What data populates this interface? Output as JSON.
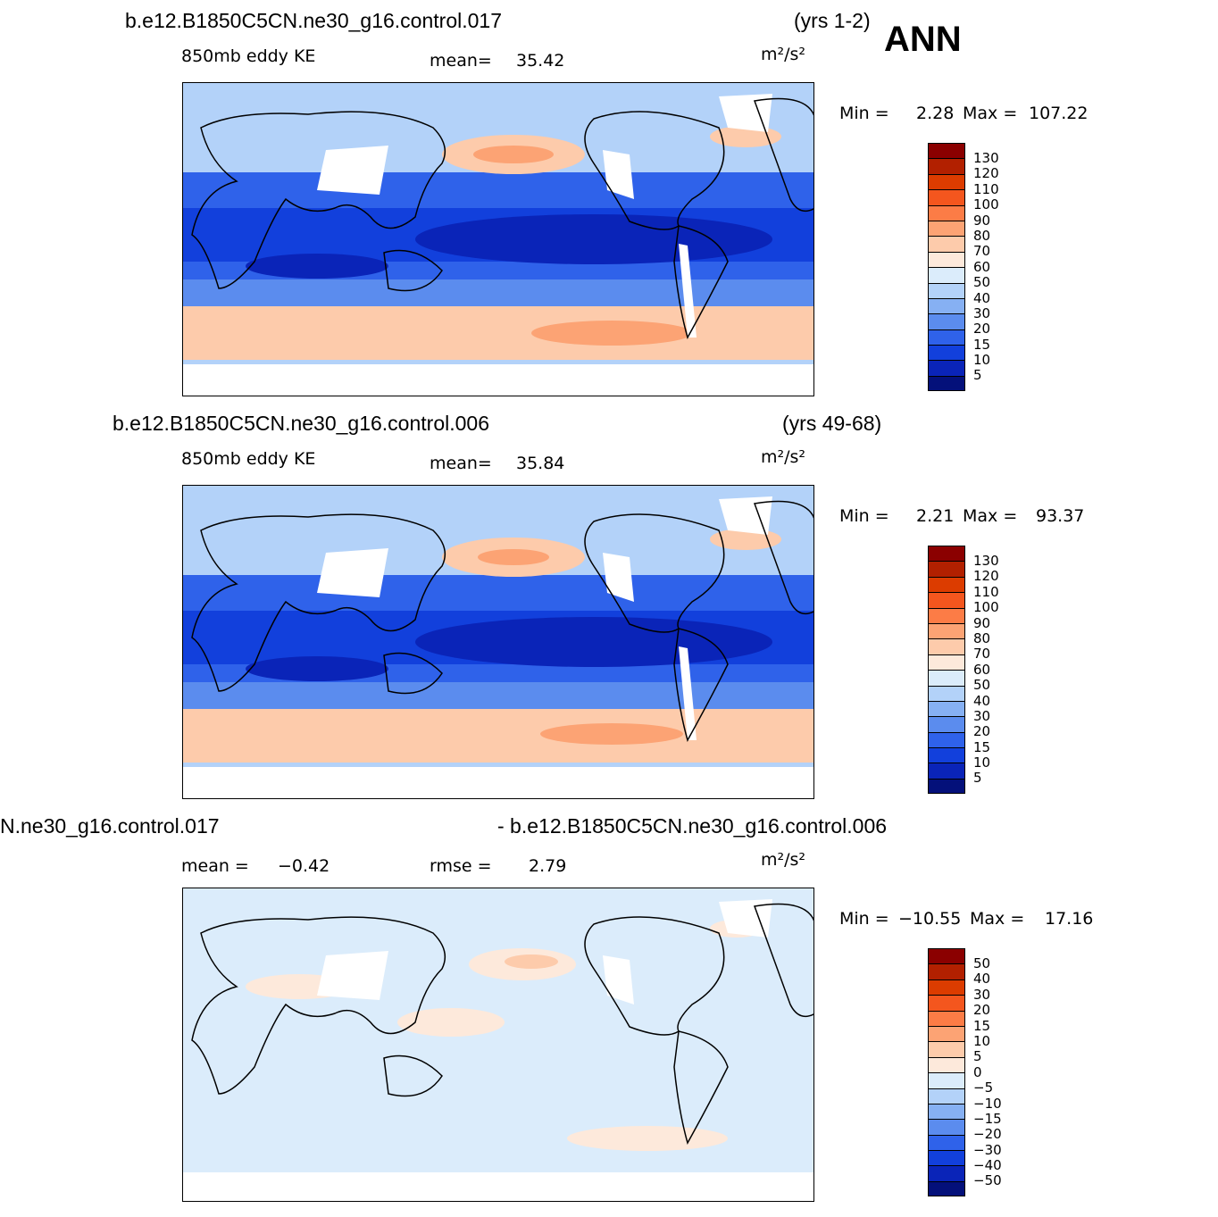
{
  "season": "ANN",
  "panels": [
    {
      "case": "b.e12.B1850C5CN.ne30_g16.control.017",
      "years": "(yrs 1-2)",
      "variable": "850mb  eddy  KE",
      "stat1_label": "mean=",
      "stat1_value": "35.42",
      "units": "m²/s²",
      "min_label": "Min  =",
      "min_value": "2.28",
      "max_label": "Max  =",
      "max_value": "107.22",
      "levels": [
        "130",
        "120",
        "110",
        "100",
        "90",
        "80",
        "70",
        "60",
        "50",
        "40",
        "30",
        "20",
        "15",
        "10",
        "5"
      ],
      "colors": [
        "#8b0000",
        "#b22000",
        "#dc3c00",
        "#f4561e",
        "#fc7c46",
        "#fca374",
        "#fdcbab",
        "#fde9db",
        "#dbecfb",
        "#b3d2f9",
        "#86b0f3",
        "#5b8cee",
        "#2f62ea",
        "#1240dc",
        "#0a24b8",
        "#04107a"
      ]
    },
    {
      "case": "b.e12.B1850C5CN.ne30_g16.control.006",
      "years": "(yrs 49-68)",
      "variable": "850mb  eddy  KE",
      "stat1_label": "mean=",
      "stat1_value": "35.84",
      "units": "m²/s²",
      "min_label": "Min  =",
      "min_value": "2.21",
      "max_label": "Max  =",
      "max_value": "93.37",
      "levels": [
        "130",
        "120",
        "110",
        "100",
        "90",
        "80",
        "70",
        "60",
        "50",
        "40",
        "30",
        "20",
        "15",
        "10",
        "5"
      ],
      "colors": [
        "#8b0000",
        "#b22000",
        "#dc3c00",
        "#f4561e",
        "#fc7c46",
        "#fca374",
        "#fdcbab",
        "#fde9db",
        "#dbecfb",
        "#b3d2f9",
        "#86b0f3",
        "#5b8cee",
        "#2f62ea",
        "#1240dc",
        "#0a24b8",
        "#04107a"
      ]
    },
    {
      "case_left": "N.ne30_g16.control.017",
      "case_right": "- b.e12.B1850C5CN.ne30_g16.control.006",
      "stat1_label": "mean  =",
      "stat1_value": "−0.42",
      "stat2_label": "rmse  =",
      "stat2_value": "2.79",
      "units": "m²/s²",
      "min_label": "Min  =",
      "min_value": "−10.55",
      "max_label": "Max  =",
      "max_value": "17.16",
      "levels": [
        "50",
        "40",
        "30",
        "20",
        "15",
        "10",
        "5",
        "0",
        "−5",
        "−10",
        "−15",
        "−20",
        "−30",
        "−40",
        "−50"
      ],
      "colors": [
        "#8b0000",
        "#b22000",
        "#dc3c00",
        "#f4561e",
        "#fc7c46",
        "#fca374",
        "#fdcbab",
        "#fde9db",
        "#dbecfb",
        "#b3d2f9",
        "#86b0f3",
        "#5b8cee",
        "#2f62ea",
        "#1240dc",
        "#0a24b8",
        "#04107a"
      ]
    }
  ]
}
